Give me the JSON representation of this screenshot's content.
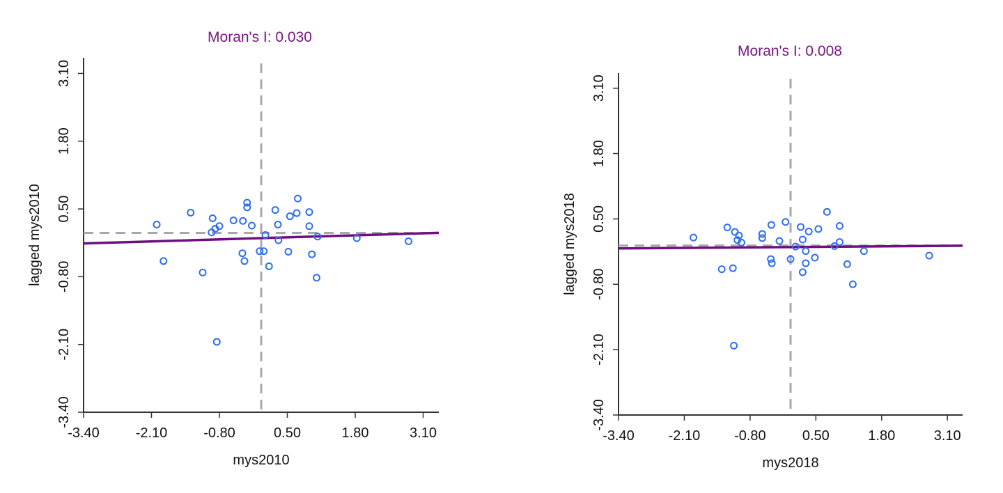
{
  "colors": {
    "title": "#7a1585",
    "regression": "#6e0f80",
    "points": "#2f6ef2",
    "reference": "#a8a8a8",
    "axis": "#333333"
  },
  "chart_data": [
    {
      "type": "scatter",
      "title": "Moran's I: 0.030",
      "xlabel": "mys2010",
      "ylabel": "lagged mys2010",
      "xlim": [
        -3.4,
        3.4
      ],
      "ylim": [
        -3.4,
        3.4
      ],
      "xticks": [
        "-3.40",
        "-2.10",
        "-0.80",
        "0.50",
        "1.80",
        "3.10"
      ],
      "yticks": [
        "-3.40",
        "-2.10",
        "-0.80",
        "0.50",
        "1.80",
        "3.10"
      ],
      "reference_lines": {
        "vertical_x": 0.0,
        "horizontal_y": 0.04
      },
      "regression": {
        "slope": 0.03,
        "intercept": -0.06
      },
      "points": [
        [
          -2.0,
          0.2
        ],
        [
          -1.87,
          -0.5
        ],
        [
          -1.35,
          0.43
        ],
        [
          -1.12,
          -0.72
        ],
        [
          -0.93,
          0.32
        ],
        [
          -0.95,
          0.05
        ],
        [
          -0.88,
          0.12
        ],
        [
          -0.8,
          0.17
        ],
        [
          -0.85,
          -2.05
        ],
        [
          -0.53,
          0.28
        ],
        [
          -0.35,
          0.27
        ],
        [
          -0.27,
          0.62
        ],
        [
          -0.27,
          0.53
        ],
        [
          -0.18,
          0.18
        ],
        [
          -0.36,
          -0.35
        ],
        [
          -0.32,
          -0.5
        ],
        [
          -0.03,
          -0.31
        ],
        [
          0.05,
          -0.31
        ],
        [
          0.08,
          0.0
        ],
        [
          0.15,
          -0.6
        ],
        [
          0.27,
          0.48
        ],
        [
          0.32,
          0.2
        ],
        [
          0.33,
          -0.1
        ],
        [
          0.52,
          -0.32
        ],
        [
          0.55,
          0.36
        ],
        [
          0.68,
          0.42
        ],
        [
          0.7,
          0.7
        ],
        [
          0.92,
          0.44
        ],
        [
          0.92,
          0.17
        ],
        [
          0.97,
          -0.37
        ],
        [
          1.08,
          -0.03
        ],
        [
          1.06,
          -0.82
        ],
        [
          1.83,
          -0.06
        ],
        [
          2.82,
          -0.12
        ]
      ]
    },
    {
      "type": "scatter",
      "title": "Moran's I: 0.008",
      "xlabel": "mys2018",
      "ylabel": "lagged mys2018",
      "xlim": [
        -3.4,
        3.4
      ],
      "ylim": [
        -3.4,
        3.4
      ],
      "xticks": [
        "-3.40",
        "-2.10",
        "-0.80",
        "0.50",
        "1.80",
        "3.10"
      ],
      "yticks": [
        "-3.40",
        "-2.10",
        "-0.80",
        "0.50",
        "1.80",
        "3.10"
      ],
      "reference_lines": {
        "vertical_x": 0.0,
        "horizontal_y": -0.03
      },
      "regression": {
        "slope": 0.008,
        "intercept": -0.06
      },
      "points": [
        [
          -1.92,
          0.13
        ],
        [
          -1.36,
          -0.5
        ],
        [
          -1.25,
          0.33
        ],
        [
          -1.14,
          -0.48
        ],
        [
          -1.1,
          0.24
        ],
        [
          -1.05,
          0.08
        ],
        [
          -1.02,
          0.17
        ],
        [
          -0.97,
          0.03
        ],
        [
          -1.12,
          -2.02
        ],
        [
          -0.56,
          0.12
        ],
        [
          -0.56,
          0.2
        ],
        [
          -0.39,
          -0.3
        ],
        [
          -0.38,
          0.38
        ],
        [
          -0.37,
          -0.38
        ],
        [
          -0.22,
          0.06
        ],
        [
          -0.1,
          0.44
        ],
        [
          0.0,
          -0.3
        ],
        [
          0.1,
          -0.05
        ],
        [
          0.2,
          0.34
        ],
        [
          0.24,
          0.09
        ],
        [
          0.24,
          -0.56
        ],
        [
          0.3,
          -0.38
        ],
        [
          0.3,
          -0.14
        ],
        [
          0.36,
          0.25
        ],
        [
          0.48,
          -0.27
        ],
        [
          0.55,
          0.3
        ],
        [
          0.72,
          0.64
        ],
        [
          0.87,
          -0.04
        ],
        [
          0.97,
          0.04
        ],
        [
          0.97,
          0.36
        ],
        [
          1.12,
          -0.4
        ],
        [
          1.23,
          -0.8
        ],
        [
          1.45,
          -0.14
        ],
        [
          2.74,
          -0.23
        ]
      ]
    }
  ]
}
